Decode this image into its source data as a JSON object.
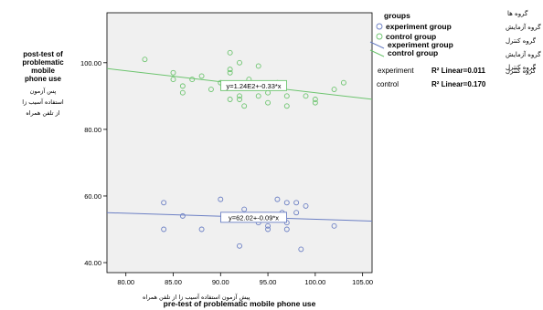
{
  "chart_data": {
    "type": "scatter",
    "xlabel": "pre-test of problematic mobile phone use",
    "xlabel_fa": "پیش آزمون استفاده آسیب زا از تلفن همراه",
    "ylabel_lines": [
      "post-test of",
      "problematic",
      "mobile",
      "phone use"
    ],
    "ylabel_fa_lines": [
      "پس آزمون",
      "استفاده آسیب زا",
      "از تلفن همراه"
    ],
    "xlim": [
      78,
      106
    ],
    "ylim": [
      37,
      115
    ],
    "x_ticks": [
      80,
      85,
      90,
      95,
      100,
      105
    ],
    "x_tick_labels": [
      "80.00",
      "85.00",
      "90.00",
      "95.00",
      "100.00",
      "105.00"
    ],
    "y_ticks": [
      40,
      60,
      80,
      100
    ],
    "y_tick_labels": [
      "40.00",
      "60.00",
      "80.00",
      "100.00"
    ],
    "grid": false,
    "series": [
      {
        "name": "experiment group",
        "color": "#6b7fc4",
        "points": [
          [
            84,
            58
          ],
          [
            84,
            50
          ],
          [
            86,
            54
          ],
          [
            88,
            50
          ],
          [
            90,
            59
          ],
          [
            91,
            53
          ],
          [
            92,
            45
          ],
          [
            92.5,
            56
          ],
          [
            93,
            54
          ],
          [
            94,
            52
          ],
          [
            95,
            51
          ],
          [
            95,
            50
          ],
          [
            95.5,
            54
          ],
          [
            96,
            59
          ],
          [
            96.5,
            55
          ],
          [
            97,
            58
          ],
          [
            97,
            52
          ],
          [
            97,
            50
          ],
          [
            98,
            58
          ],
          [
            98,
            55
          ],
          [
            98.5,
            44
          ],
          [
            99,
            57
          ],
          [
            102,
            51
          ]
        ],
        "fit": {
          "intercept": 62.02,
          "slope": -0.09,
          "label": "y=62.02+-0.09*x"
        }
      },
      {
        "name": "control group",
        "color": "#6cc46e",
        "points": [
          [
            82,
            101
          ],
          [
            85,
            97
          ],
          [
            85,
            95
          ],
          [
            86,
            93
          ],
          [
            86,
            91
          ],
          [
            87,
            95
          ],
          [
            88,
            96
          ],
          [
            89,
            92
          ],
          [
            90,
            94
          ],
          [
            91,
            103
          ],
          [
            91,
            98
          ],
          [
            91,
            97
          ],
          [
            91,
            89
          ],
          [
            92,
            100
          ],
          [
            92,
            90
          ],
          [
            92,
            89
          ],
          [
            92.5,
            87
          ],
          [
            93,
            95
          ],
          [
            94,
            99
          ],
          [
            94,
            90
          ],
          [
            95,
            91
          ],
          [
            95,
            88
          ],
          [
            96,
            94
          ],
          [
            97,
            90
          ],
          [
            97,
            87
          ],
          [
            99,
            90
          ],
          [
            100,
            89
          ],
          [
            100,
            88
          ],
          [
            102,
            92
          ],
          [
            103,
            94
          ]
        ],
        "fit": {
          "intercept": 124,
          "slope": -0.33,
          "label": "y=1.24E2+-0.33*x"
        }
      }
    ],
    "legend": {
      "title": "groups",
      "title_fa": "گروه ها",
      "entries": [
        {
          "label": "experiment group",
          "label_fa": "گروه آزمایش",
          "kind": "marker",
          "series": 0
        },
        {
          "label": "control group",
          "label_fa": "گروه کنترل",
          "kind": "marker",
          "series": 1
        },
        {
          "label": "experiment group",
          "label_fa": "گروه آزمایش",
          "kind": "line",
          "series": 0
        },
        {
          "label": "control group",
          "label_fa": "گروه کنترل",
          "kind": "line",
          "series": 1
        }
      ],
      "r2": [
        {
          "group": "experiment",
          "text": "R² Linear=0.011",
          "label_fa": "گروه کنترل"
        },
        {
          "group": "control",
          "text": "R² Linear=0.170"
        }
      ]
    }
  }
}
